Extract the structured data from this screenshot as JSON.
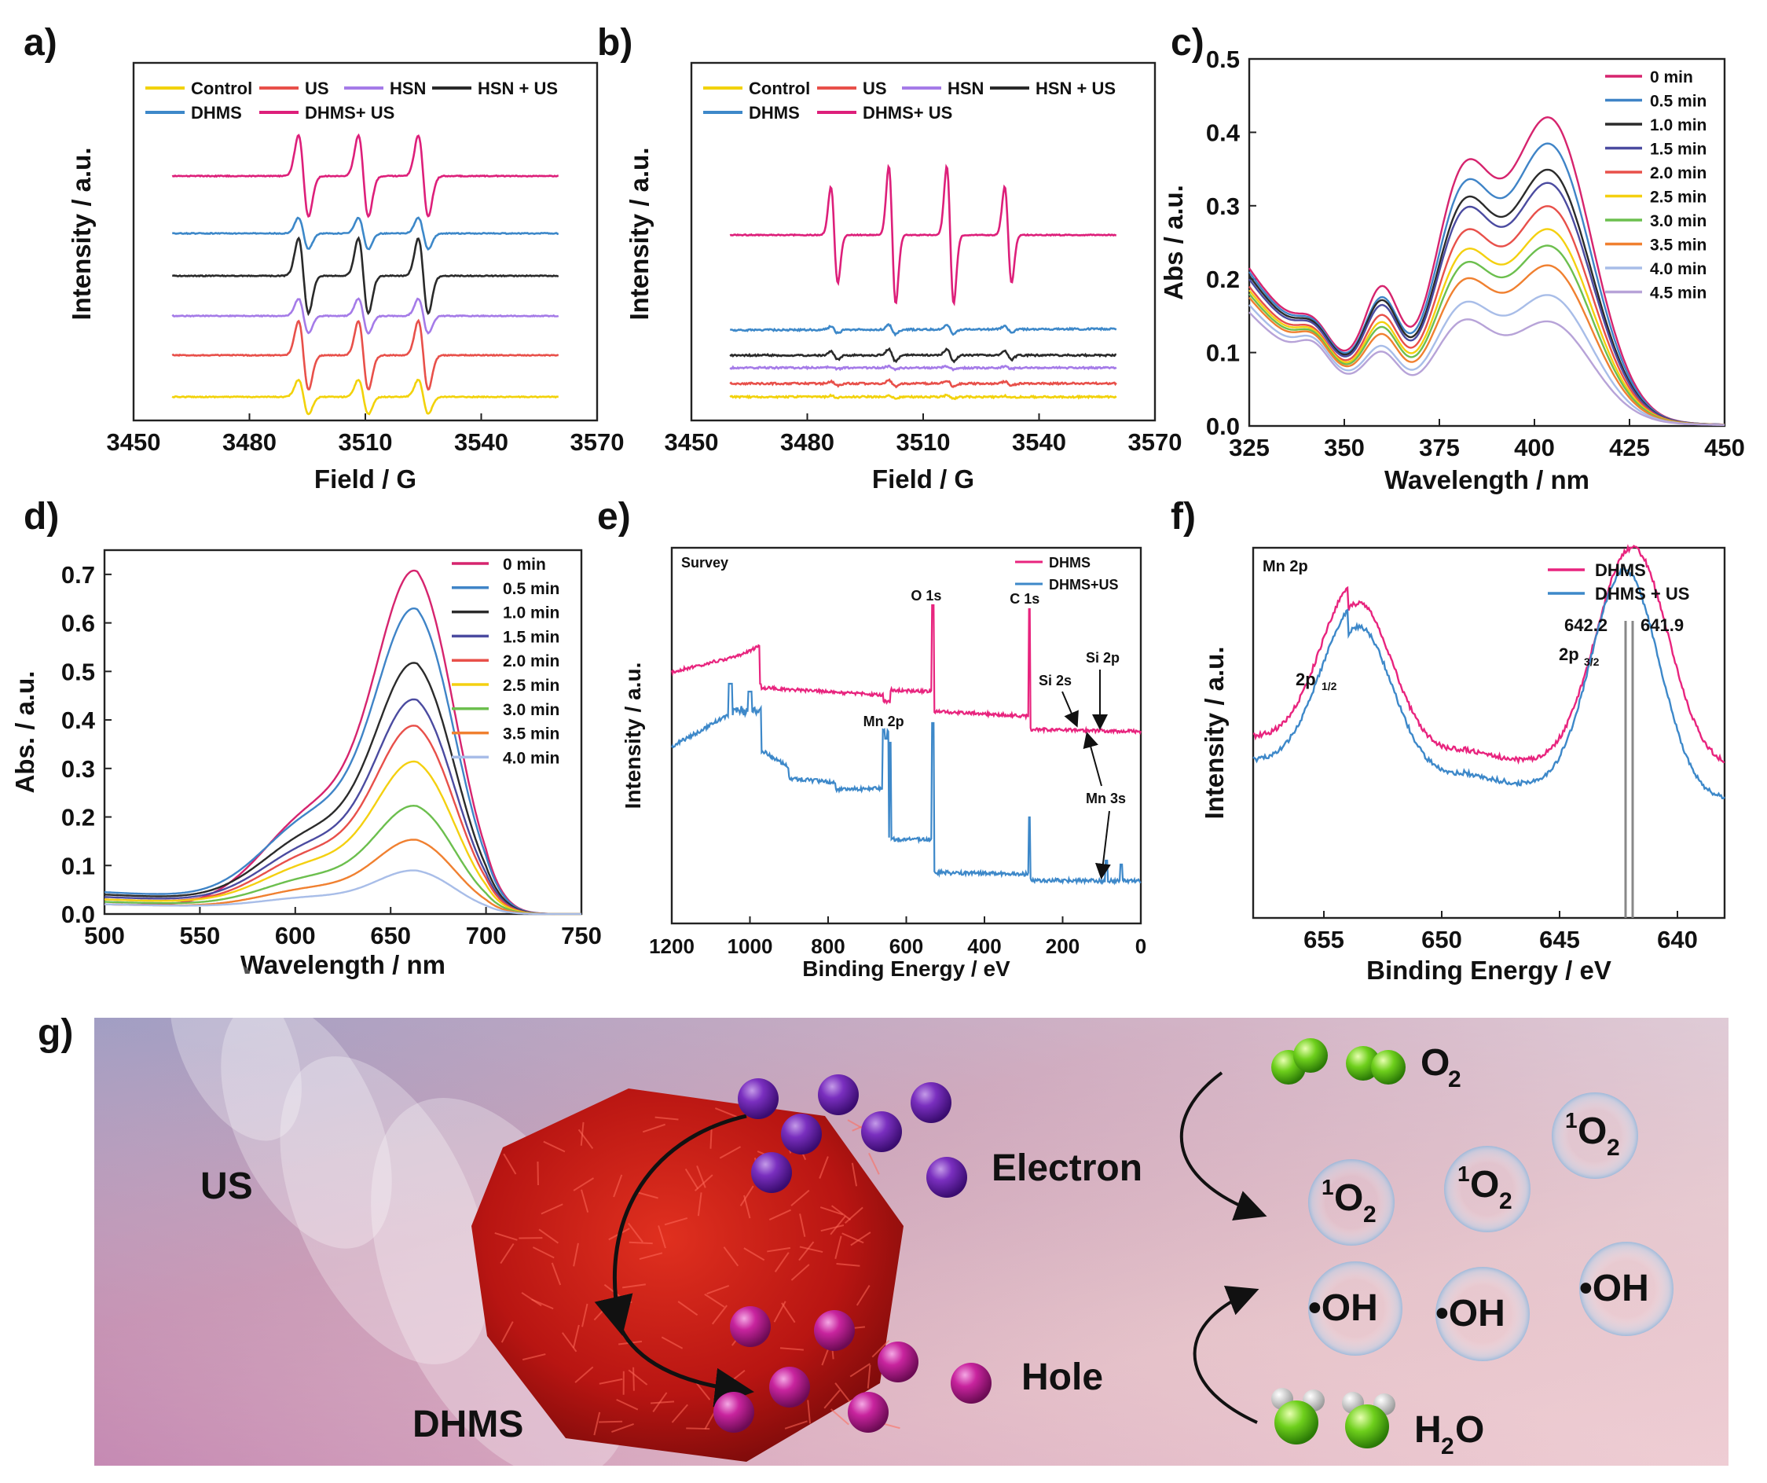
{
  "panel_letters": [
    "a)",
    "b)",
    "c)",
    "d)",
    "e)",
    "f)",
    "g)"
  ],
  "colors": {
    "control": "#f2d20a",
    "us": "#e8504a",
    "hsn": "#a57be8",
    "hsn_us": "#2a2a2a",
    "dhms": "#3d88c9",
    "dhms_us": "#dd1f7a"
  },
  "chart_data": [
    {
      "type": "line",
      "panel": "a)",
      "xlabel": "Field / G",
      "ylabel": "Intensity / a.u.",
      "xlim": [
        3450,
        3570
      ],
      "xticks": [
        3450,
        3480,
        3510,
        3540,
        3570
      ],
      "x_range_of_traces": [
        3460,
        3560
      ],
      "signal": "EPR triplet (1:1:1), lines at 3494, 3509.5, 3525 G",
      "series": [
        {
          "name": "Control",
          "color": "#f2d20a",
          "relative_amplitude": 0.35
        },
        {
          "name": "US",
          "color": "#e8504a",
          "relative_amplitude": 0.75
        },
        {
          "name": "HSN",
          "color": "#a57be8",
          "relative_amplitude": 0.4
        },
        {
          "name": "HSN + US",
          "color": "#2a2a2a",
          "relative_amplitude": 0.8
        },
        {
          "name": "DHMS",
          "color": "#3d88c9",
          "relative_amplitude": 0.35
        },
        {
          "name": "DHMS+ US",
          "color": "#dd1f7a",
          "relative_amplitude": 1.0
        }
      ],
      "legend_labels": [
        "Control",
        "US",
        "HSN",
        "HSN + US",
        "DHMS",
        "DHMS+ US"
      ]
    },
    {
      "type": "line",
      "panel": "b)",
      "xlabel": "Field / G",
      "ylabel": "Intensity / a.u.",
      "xlim": [
        3450,
        3570
      ],
      "xticks": [
        3450,
        3480,
        3510,
        3540,
        3570
      ],
      "x_range_of_traces": [
        3460,
        3560
      ],
      "signal": "EPR quartet (1:2:2:1), lines at 3487, 3502, 3517, 3532 G",
      "series": [
        {
          "name": "Control",
          "color": "#f2d20a",
          "relative_amplitude": 0.02
        },
        {
          "name": "US",
          "color": "#e8504a",
          "relative_amplitude": 0.05
        },
        {
          "name": "HSN",
          "color": "#a57be8",
          "relative_amplitude": 0.02
        },
        {
          "name": "HSN + US",
          "color": "#2a2a2a",
          "relative_amplitude": 0.12
        },
        {
          "name": "DHMS",
          "color": "#3d88c9",
          "relative_amplitude": 0.06
        },
        {
          "name": "DHMS+ US",
          "color": "#dd1f7a",
          "relative_amplitude": 1.0
        }
      ],
      "legend_labels": [
        "Control",
        "US",
        "HSN",
        "HSN + US",
        "DHMS",
        "DHMS+ US"
      ]
    },
    {
      "type": "line",
      "panel": "c)",
      "xlabel": "Wavelength / nm",
      "ylabel": "Abs / a.u.",
      "xlim": [
        325,
        450
      ],
      "ylim": [
        0,
        0.5
      ],
      "xticks": [
        325,
        350,
        375,
        400,
        425,
        450
      ],
      "yticks": [
        "0.0",
        "0.1",
        "0.2",
        "0.3",
        "0.4",
        "0.5"
      ],
      "peaks_nm": [
        342,
        360,
        381,
        404
      ],
      "series": [
        {
          "name": "0 min",
          "color": "#d6246e",
          "y_at_404": 0.46,
          "y_at_381": 0.39,
          "y_at_360": 0.26,
          "y_at_325": 0.215
        },
        {
          "name": "0.5 min",
          "color": "#3f84c7",
          "y_at_404": 0.42,
          "y_at_381": 0.36,
          "y_at_360": 0.235,
          "y_at_325": 0.21
        },
        {
          "name": "1.0 min",
          "color": "#2b2b2b",
          "y_at_404": 0.38,
          "y_at_381": 0.335,
          "y_at_360": 0.23,
          "y_at_325": 0.205
        },
        {
          "name": "1.5 min",
          "color": "#4b4ba0",
          "y_at_404": 0.36,
          "y_at_381": 0.32,
          "y_at_360": 0.22,
          "y_at_325": 0.2
        },
        {
          "name": "2.0 min",
          "color": "#e8504a",
          "y_at_404": 0.325,
          "y_at_381": 0.285,
          "y_at_360": 0.2,
          "y_at_325": 0.19
        },
        {
          "name": "2.5 min",
          "color": "#f4d010",
          "y_at_404": 0.29,
          "y_at_381": 0.255,
          "y_at_360": 0.185,
          "y_at_325": 0.185
        },
        {
          "name": "3.0 min",
          "color": "#6cbf4e",
          "y_at_404": 0.265,
          "y_at_381": 0.235,
          "y_at_360": 0.175,
          "y_at_325": 0.18
        },
        {
          "name": "3.5 min",
          "color": "#f08030",
          "y_at_404": 0.235,
          "y_at_381": 0.21,
          "y_at_360": 0.16,
          "y_at_325": 0.175
        },
        {
          "name": "4.0 min",
          "color": "#a8bde8",
          "y_at_404": 0.19,
          "y_at_381": 0.175,
          "y_at_360": 0.135,
          "y_at_325": 0.165
        },
        {
          "name": "4.5 min",
          "color": "#b7a3d8",
          "y_at_404": 0.15,
          "y_at_381": 0.15,
          "y_at_360": 0.125,
          "y_at_325": 0.155
        }
      ]
    },
    {
      "type": "line",
      "panel": "d)",
      "xlabel": "Wavelength / nm",
      "ylabel": "Abs. / a.u.",
      "xlim": [
        500,
        750
      ],
      "ylim": [
        0,
        0.75
      ],
      "xticks": [
        500,
        550,
        600,
        650,
        700,
        750
      ],
      "yticks": [
        "0.0",
        "0.1",
        "0.2",
        "0.3",
        "0.4",
        "0.5",
        "0.6",
        "0.7"
      ],
      "peak_nm": 664,
      "shoulder_nm": 612,
      "series": [
        {
          "name": "0 min",
          "color": "#d6246e",
          "peak": 0.665,
          "y_at_500": 0.02
        },
        {
          "name": "0.5 min",
          "color": "#3f84c7",
          "peak": 0.585,
          "y_at_500": 0.045
        },
        {
          "name": "1.0 min",
          "color": "#2b2b2b",
          "peak": 0.48,
          "y_at_500": 0.04
        },
        {
          "name": "1.5 min",
          "color": "#4b4ba0",
          "peak": 0.41,
          "y_at_500": 0.035
        },
        {
          "name": "2.0 min",
          "color": "#e8504a",
          "peak": 0.36,
          "y_at_500": 0.03
        },
        {
          "name": "2.5 min",
          "color": "#f4d010",
          "peak": 0.29,
          "y_at_500": 0.03
        },
        {
          "name": "3.0 min",
          "color": "#6cbf4e",
          "peak": 0.205,
          "y_at_500": 0.025
        },
        {
          "name": "3.5 min",
          "color": "#f08030",
          "peak": 0.14,
          "y_at_500": 0.02
        },
        {
          "name": "4.0 min",
          "color": "#a8bde8",
          "peak": 0.08,
          "y_at_500": 0.02
        }
      ]
    },
    {
      "type": "line",
      "panel": "e)",
      "xlabel": "Binding Energy / eV",
      "ylabel": "Intensity / a.u.",
      "xlim": [
        1200,
        0
      ],
      "xticks": [
        1200,
        1000,
        800,
        600,
        400,
        200,
        0
      ],
      "panel_title": "Survey",
      "series": [
        {
          "name": "DHMS",
          "color": "#e8247e"
        },
        {
          "name": "DHMS+US",
          "color": "#3d88c9"
        }
      ],
      "peak_labels": [
        "O 1s",
        "C 1s",
        "Si 2p",
        "Si 2s",
        "Mn 2p",
        "Mn 3s"
      ]
    },
    {
      "type": "line",
      "panel": "f)",
      "xlabel": "Binding Energy / eV",
      "ylabel": "Intensity / a.u.",
      "xlim": [
        658,
        638
      ],
      "xticks": [
        655,
        650,
        645,
        640
      ],
      "panel_title": "Mn 2p",
      "series": [
        {
          "name": "DHMS",
          "color": "#e8247e",
          "peak_2p32": 641.9
        },
        {
          "name": "DHMS + US",
          "color": "#3d88c9",
          "peak_2p32": 642.2
        }
      ],
      "annotations": [
        "642.2",
        "641.9",
        "2p",
        "3/2",
        "2p",
        "1/2"
      ]
    }
  ],
  "scheme": {
    "labels": {
      "us": "US",
      "dhms": "DHMS",
      "electron": "Electron",
      "hole": "Hole",
      "o2": "O",
      "o2_sub": "2",
      "h2o_h": "H",
      "h2o_sub": "2",
      "h2o_o": "O",
      "singlet_sup": "1",
      "singlet_o": "O",
      "singlet_sub": "2",
      "oh": "•OH"
    }
  }
}
